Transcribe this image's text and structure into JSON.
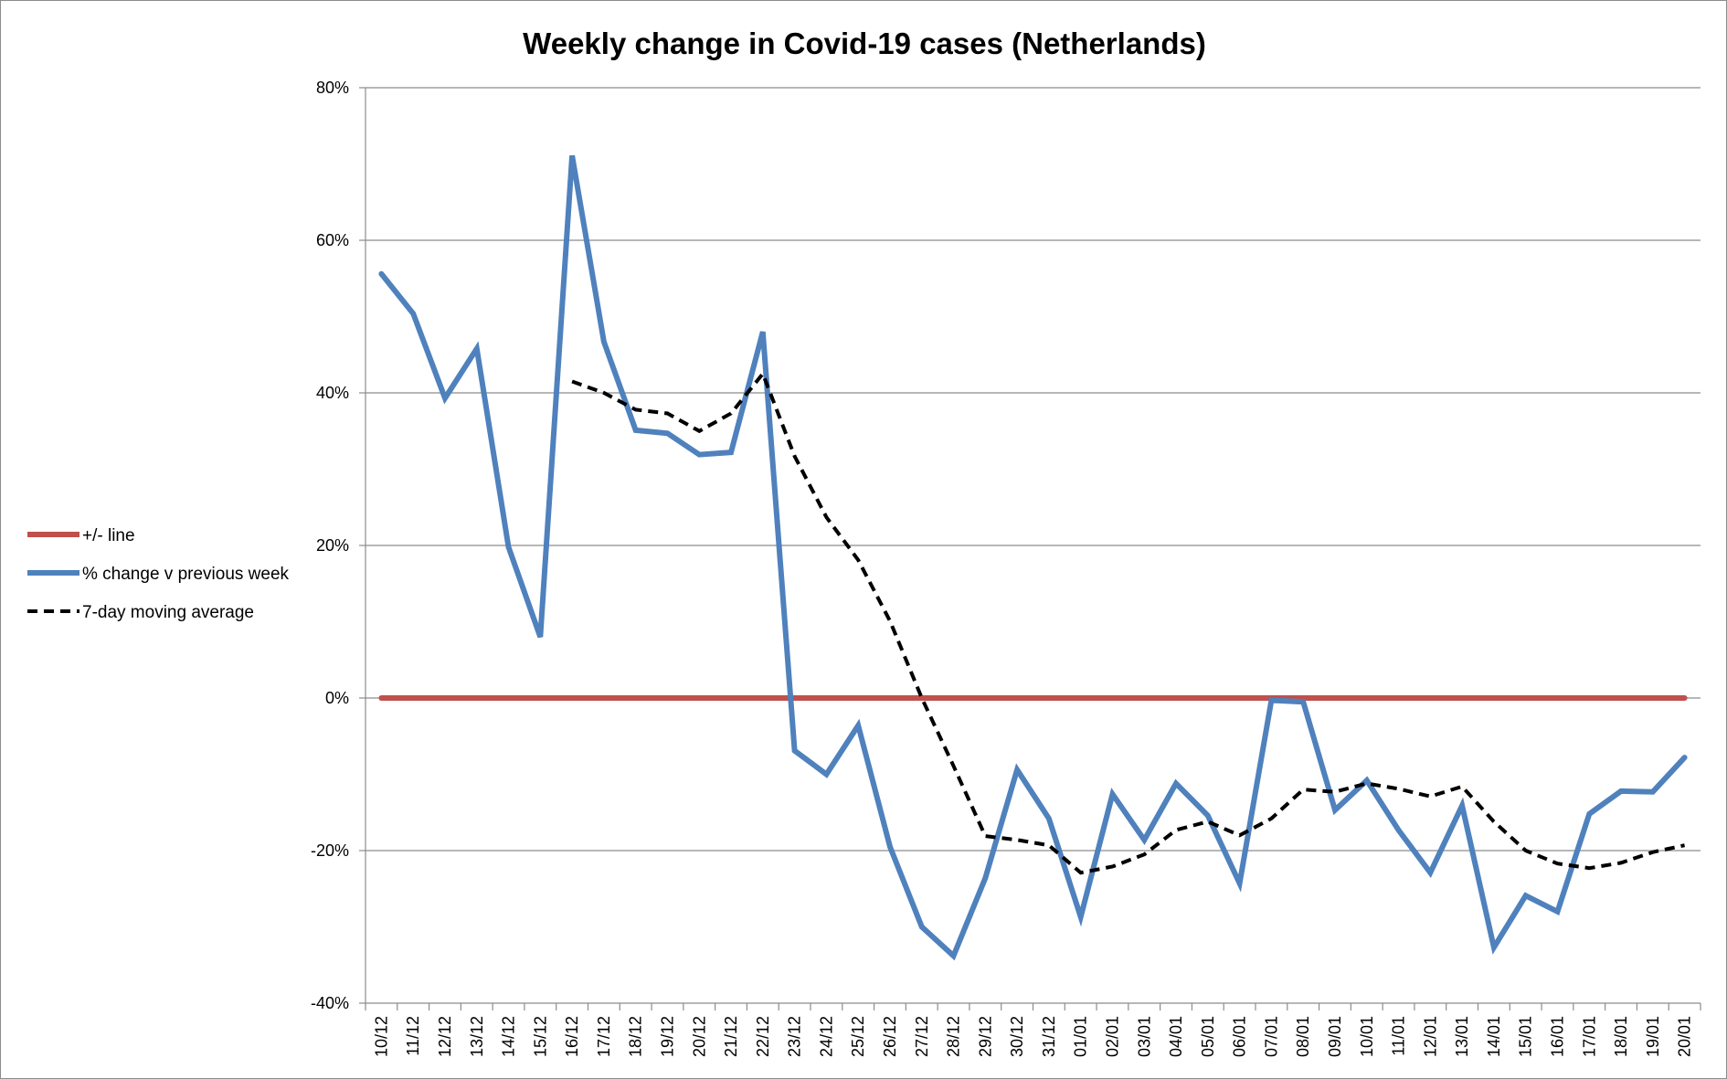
{
  "chart_data": {
    "type": "line",
    "title": "Weekly change in Covid-19 cases (Netherlands)",
    "xlabel": "",
    "ylabel": "",
    "ylim": [
      -40,
      80
    ],
    "y_ticks": [
      80,
      60,
      40,
      20,
      0,
      -20,
      -40
    ],
    "y_tick_labels": [
      "80%",
      "60%",
      "40%",
      "20%",
      "0%",
      "-20%",
      "-40%"
    ],
    "grid": true,
    "legend_position": "left",
    "categories": [
      "10/12",
      "11/12",
      "12/12",
      "13/12",
      "14/12",
      "15/12",
      "16/12",
      "17/12",
      "18/12",
      "19/12",
      "20/12",
      "21/12",
      "22/12",
      "23/12",
      "24/12",
      "25/12",
      "26/12",
      "27/12",
      "28/12",
      "29/12",
      "30/12",
      "31/12",
      "01/01",
      "02/01",
      "03/01",
      "04/01",
      "05/01",
      "06/01",
      "07/01",
      "08/01",
      "09/01",
      "10/01",
      "11/01",
      "12/01",
      "13/01",
      "14/01",
      "15/01",
      "16/01",
      "17/01",
      "18/01",
      "19/01",
      "20/01"
    ],
    "series": [
      {
        "name": "+/- line",
        "color": "#c0504d",
        "style": "solid",
        "values": [
          0,
          0,
          0,
          0,
          0,
          0,
          0,
          0,
          0,
          0,
          0,
          0,
          0,
          0,
          0,
          0,
          0,
          0,
          0,
          0,
          0,
          0,
          0,
          0,
          0,
          0,
          0,
          0,
          0,
          0,
          0,
          0,
          0,
          0,
          0,
          0,
          0,
          0,
          0,
          0,
          0,
          0
        ]
      },
      {
        "name": "% change v previous week",
        "color": "#4f81bd",
        "style": "solid",
        "values": [
          55.6,
          50.4,
          39.3,
          45.8,
          19.8,
          8.0,
          71.1,
          46.7,
          35.1,
          34.7,
          31.9,
          32.2,
          48.0,
          -6.9,
          -10.0,
          -3.6,
          -19.5,
          -30.0,
          -33.8,
          -23.6,
          -9.4,
          -15.8,
          -28.7,
          -12.6,
          -18.6,
          -11.2,
          -15.4,
          -24.3,
          -0.3,
          -0.5,
          -14.7,
          -10.8,
          -17.3,
          -22.9,
          -14.1,
          -32.7,
          -25.9,
          -28.0,
          -15.2,
          -12.2,
          -12.3,
          -7.8
        ]
      },
      {
        "name": "7-day moving average",
        "color": "#000000",
        "style": "dashed",
        "values": [
          null,
          null,
          null,
          null,
          null,
          null,
          41.5,
          40.0,
          37.8,
          37.3,
          35.0,
          37.3,
          42.5,
          31.7,
          23.7,
          18.1,
          10.1,
          0.0,
          -8.9,
          -18.1,
          -18.6,
          -19.3,
          -22.9,
          -22.1,
          -20.5,
          -17.3,
          -16.2,
          -18.0,
          -15.8,
          -12.0,
          -12.3,
          -11.2,
          -11.9,
          -12.9,
          -11.6,
          -16.2,
          -20.0,
          -21.7,
          -22.3,
          -21.6,
          -20.2,
          -19.3
        ]
      }
    ]
  }
}
